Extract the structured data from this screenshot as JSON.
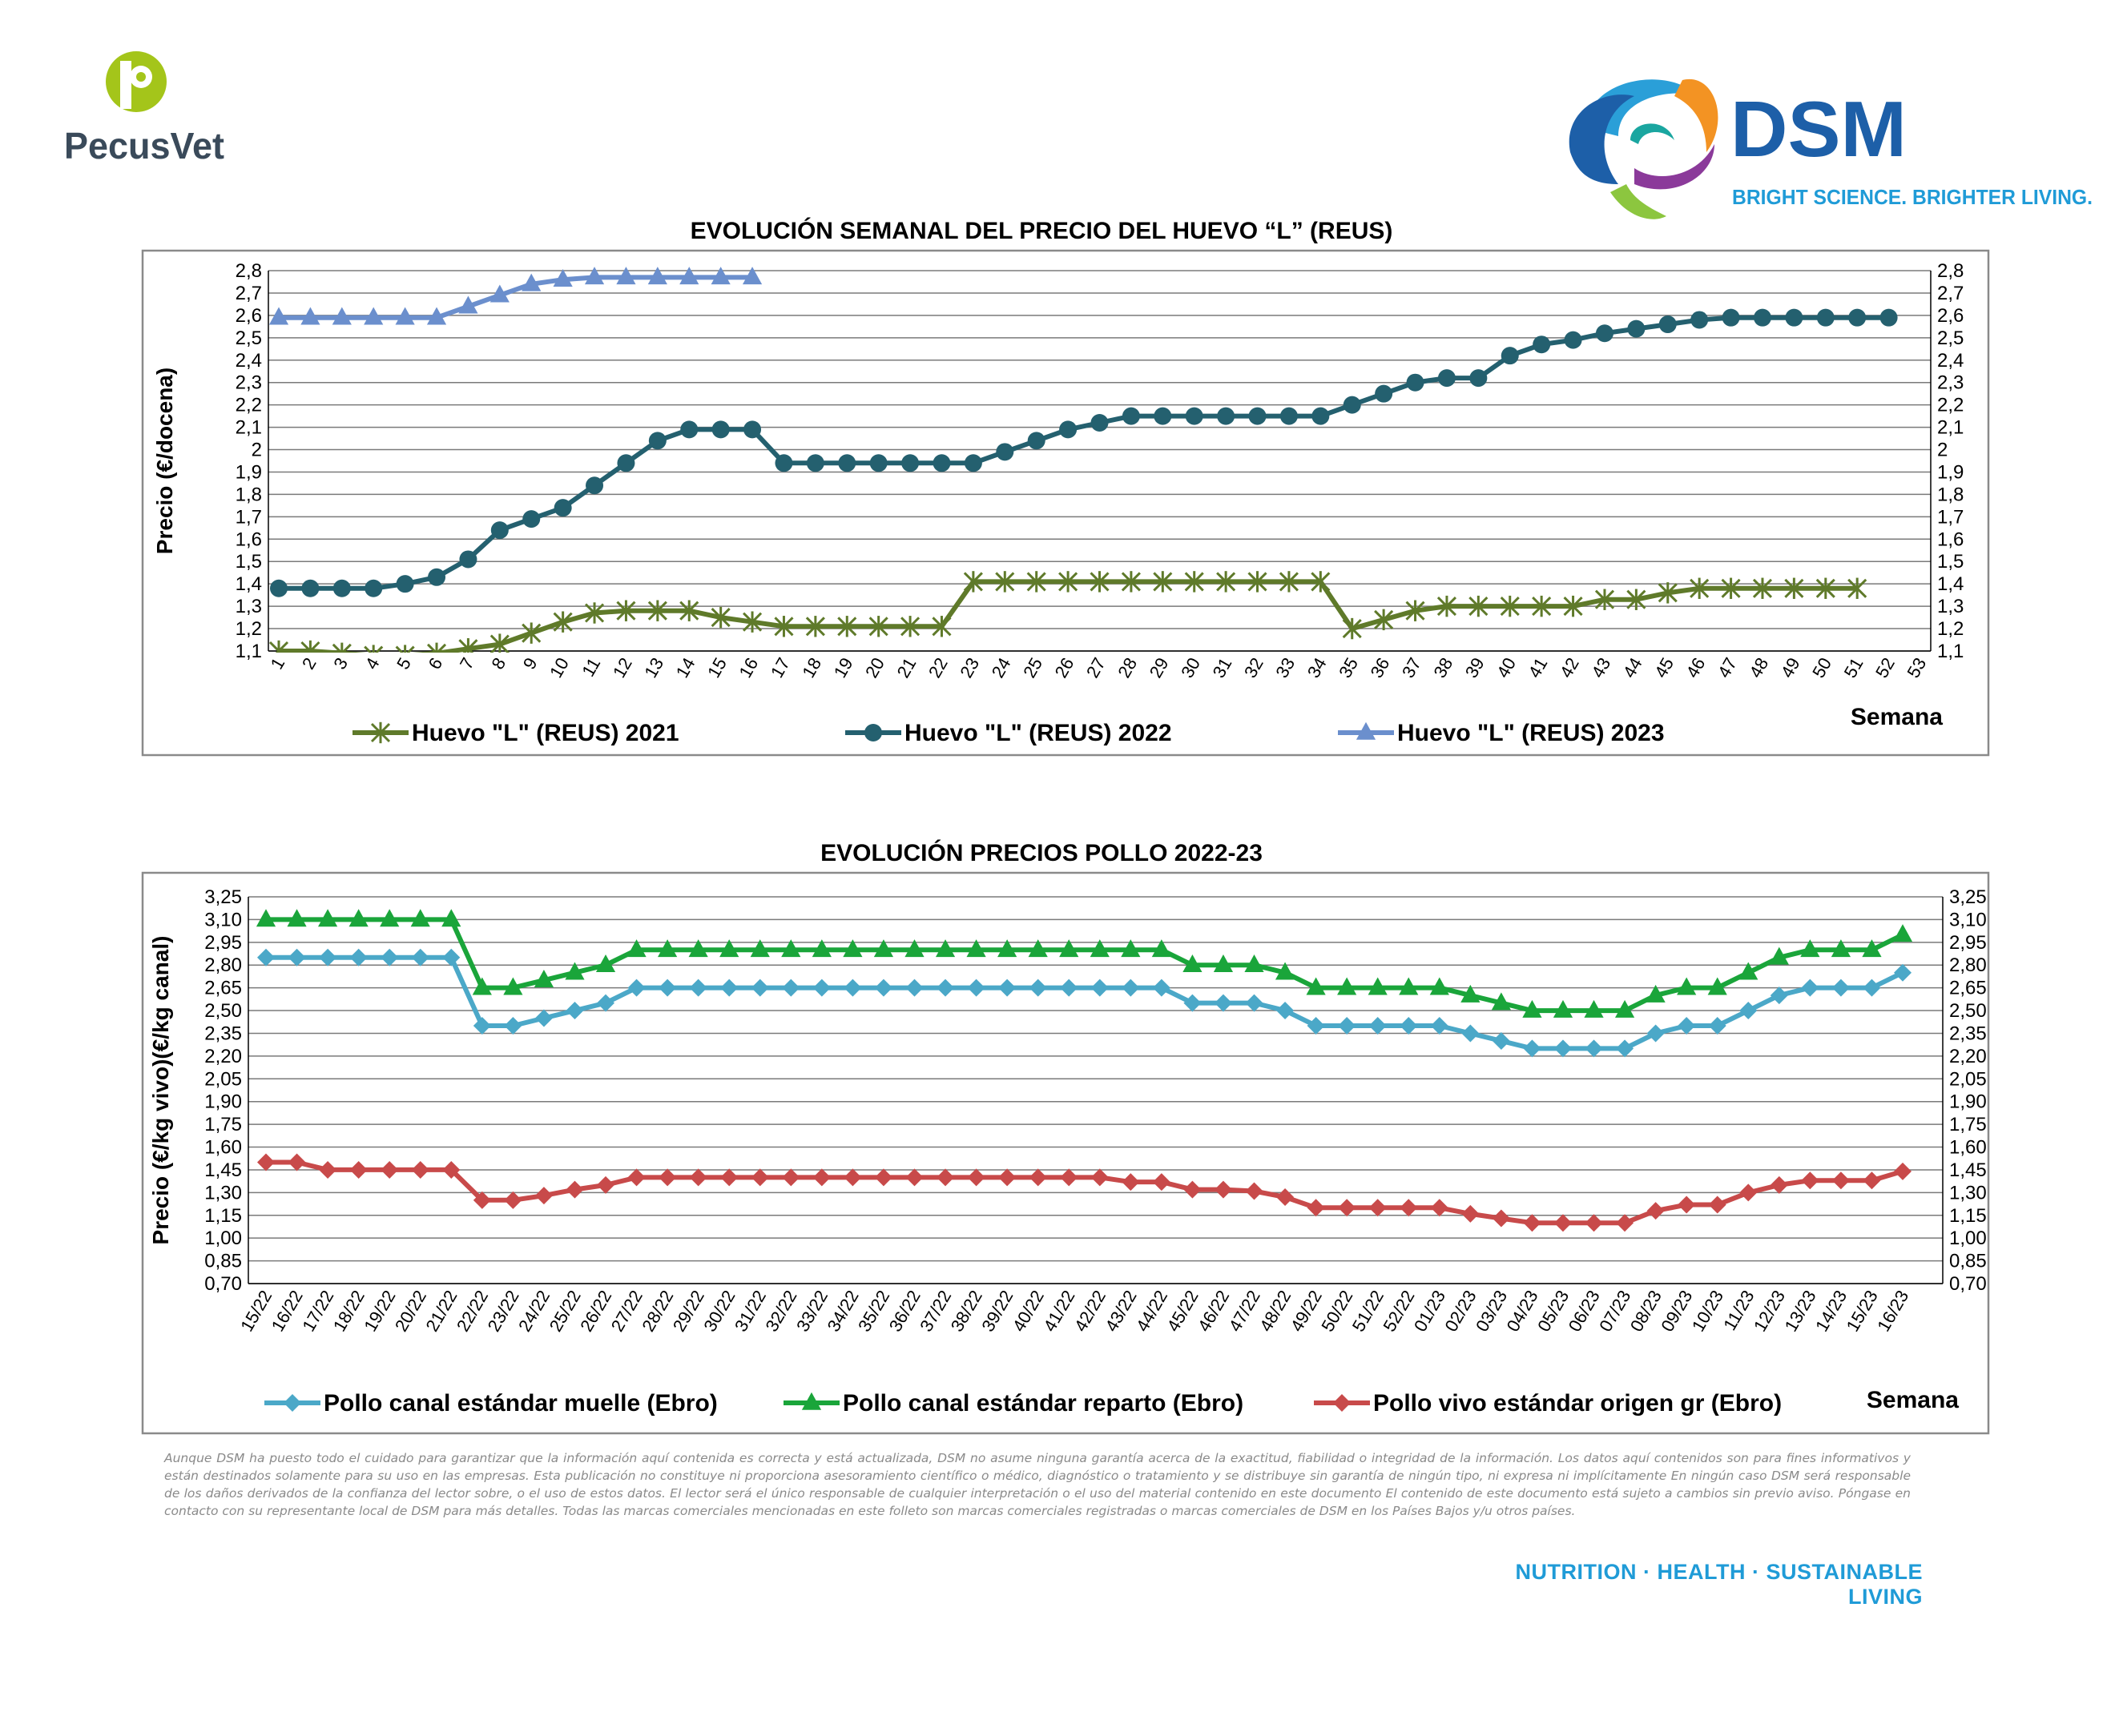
{
  "logos": {
    "pecusvet": {
      "name": "PecusVet",
      "color": "#3a4a5a",
      "accent": "#a4c51a"
    },
    "dsm": {
      "name": "DSM",
      "tagline": "BRIGHT SCIENCE. BRIGHTER LIVING.",
      "color": "#1d5fa8",
      "tagline_color": "#1f9bd7"
    }
  },
  "disclaimer": "Aunque DSM ha puesto todo el cuidado para garantizar que la información aquí contenida es correcta y está actualizada, DSM no asume ninguna garantía acerca de la exactitud, fiabilidad o integridad de la información. Los datos aquí contenidos son para fines informativos y están destinados solamente para su uso en las empresas. Esta publicación no constituye ni proporciona asesoramiento científico o médico, diagnóstico o tratamiento y se distribuye sin garantía de ningún tipo, ni expresa ni implícitamente En ningún caso DSM será responsable de los daños derivados de la confianza del lector sobre, o el uso de estos datos. El lector será el único responsable de cualquier interpretación o el uso del material contenido en este documento El contenido de este documento está sujeto a cambios sin previo aviso. Póngase en contacto con su representante local de DSM para más detalles. Todas las marcas comerciales mencionadas en este folleto son marcas comerciales registradas o marcas comerciales de DSM en los Países Bajos y/u otros países.",
  "footer_slogan": "NUTRITION · HEALTH · SUSTAINABLE LIVING",
  "chart_data": [
    {
      "type": "line",
      "title": "EVOLUCIÓN SEMANAL DEL PRECIO DEL HUEVO “L” (REUS)",
      "ylabel": "Precio (€/docena)",
      "xlabel": "Semana",
      "ylim": [
        1.1,
        2.8
      ],
      "yticks": [
        "2,8",
        "2,7",
        "2,6",
        "2,5",
        "2,4",
        "2,3",
        "2,2",
        "2,1",
        "2",
        "1,9",
        "1,8",
        "1,7",
        "1,6",
        "1,5",
        "1,4",
        "1,3",
        "1,2",
        "1,1"
      ],
      "ytick_values": [
        2.8,
        2.7,
        2.6,
        2.5,
        2.4,
        2.3,
        2.2,
        2.1,
        2.0,
        1.9,
        1.8,
        1.7,
        1.6,
        1.5,
        1.4,
        1.3,
        1.2,
        1.1
      ],
      "categories": [
        "1",
        "2",
        "3",
        "4",
        "5",
        "6",
        "7",
        "8",
        "9",
        "10",
        "11",
        "12",
        "13",
        "14",
        "15",
        "16",
        "17",
        "18",
        "19",
        "20",
        "21",
        "22",
        "23",
        "24",
        "25",
        "26",
        "27",
        "28",
        "29",
        "30",
        "31",
        "32",
        "33",
        "34",
        "35",
        "36",
        "37",
        "38",
        "39",
        "40",
        "41",
        "42",
        "43",
        "44",
        "45",
        "46",
        "47",
        "48",
        "49",
        "50",
        "51",
        "52",
        "53"
      ],
      "grid": true,
      "legend_position": "bottom",
      "series": [
        {
          "name": "Huevo \"L\" (REUS) 2021",
          "color": "#5f7a2a",
          "marker": "star",
          "values": [
            1.1,
            1.1,
            1.09,
            1.08,
            1.08,
            1.09,
            1.11,
            1.13,
            1.18,
            1.23,
            1.27,
            1.28,
            1.28,
            1.28,
            1.25,
            1.23,
            1.21,
            1.21,
            1.21,
            1.21,
            1.21,
            1.21,
            1.41,
            1.41,
            1.41,
            1.41,
            1.41,
            1.41,
            1.41,
            1.41,
            1.41,
            1.41,
            1.41,
            1.41,
            1.2,
            1.24,
            1.28,
            1.3,
            1.3,
            1.3,
            1.3,
            1.3,
            1.33,
            1.33,
            1.36,
            1.38,
            1.38,
            1.38,
            1.38,
            1.38,
            1.38,
            null,
            null
          ]
        },
        {
          "name": "Huevo \"L\" (REUS) 2022",
          "color": "#24606f",
          "marker": "circle",
          "values": [
            1.38,
            1.38,
            1.38,
            1.38,
            1.4,
            1.43,
            1.51,
            1.64,
            1.69,
            1.74,
            1.84,
            1.94,
            2.04,
            2.09,
            2.09,
            2.09,
            1.94,
            1.94,
            1.94,
            1.94,
            1.94,
            1.94,
            1.94,
            1.99,
            2.04,
            2.09,
            2.12,
            2.15,
            2.15,
            2.15,
            2.15,
            2.15,
            2.15,
            2.15,
            2.2,
            2.25,
            2.3,
            2.32,
            2.32,
            2.42,
            2.47,
            2.49,
            2.52,
            2.54,
            2.56,
            2.58,
            2.59,
            2.59,
            2.59,
            2.59,
            2.59,
            2.59,
            null
          ]
        },
        {
          "name": "Huevo \"L\" (REUS) 2023",
          "color": "#6b8fcd",
          "marker": "triangle",
          "values": [
            2.59,
            2.59,
            2.59,
            2.59,
            2.59,
            2.59,
            2.64,
            2.69,
            2.74,
            2.76,
            2.77,
            2.77,
            2.77,
            2.77,
            2.77,
            2.77,
            null,
            null,
            null,
            null,
            null,
            null,
            null,
            null,
            null,
            null,
            null,
            null,
            null,
            null,
            null,
            null,
            null,
            null,
            null,
            null,
            null,
            null,
            null,
            null,
            null,
            null,
            null,
            null,
            null,
            null,
            null,
            null,
            null,
            null,
            null,
            null,
            null
          ]
        }
      ]
    },
    {
      "type": "line",
      "title": "EVOLUCIÓN PRECIOS POLLO 2022-23",
      "ylabel": "Precio (€/kg vivo)(€/kg canal)",
      "xlabel": "Semana",
      "ylim": [
        0.7,
        3.25
      ],
      "yticks": [
        "3,25",
        "3,10",
        "2,95",
        "2,80",
        "2,65",
        "2,50",
        "2,35",
        "2,20",
        "2,05",
        "1,90",
        "1,75",
        "1,60",
        "1,45",
        "1,30",
        "1,15",
        "1,00",
        "0,85",
        "0,70"
      ],
      "ytick_values": [
        3.25,
        3.1,
        2.95,
        2.8,
        2.65,
        2.5,
        2.35,
        2.2,
        2.05,
        1.9,
        1.75,
        1.6,
        1.45,
        1.3,
        1.15,
        1.0,
        0.85,
        0.7
      ],
      "categories": [
        "15/22",
        "16/22",
        "17/22",
        "18/22",
        "19/22",
        "20/22",
        "21/22",
        "22/22",
        "23/22",
        "24/22",
        "25/22",
        "26/22",
        "27/22",
        "28/22",
        "29/22",
        "30/22",
        "31/22",
        "32/22",
        "33/22",
        "34/22",
        "35/22",
        "36/22",
        "37/22",
        "38/22",
        "39/22",
        "40/22",
        "41/22",
        "42/22",
        "43/22",
        "44/22",
        "45/22",
        "46/22",
        "47/22",
        "48/22",
        "49/22",
        "50/22",
        "51/22",
        "52/22",
        "01/23",
        "02/23",
        "03/23",
        "04/23",
        "05/23",
        "06/23",
        "07/23",
        "08/23",
        "09/23",
        "10/23",
        "11/23",
        "12/23",
        "13/23",
        "14/23",
        "15/23",
        "16/23"
      ],
      "grid": true,
      "legend_position": "bottom",
      "series": [
        {
          "name": "Pollo canal estándar muelle (Ebro)",
          "color": "#4ba8c8",
          "marker": "diamond",
          "values": [
            2.85,
            2.85,
            2.85,
            2.85,
            2.85,
            2.85,
            2.85,
            2.4,
            2.4,
            2.45,
            2.5,
            2.55,
            2.65,
            2.65,
            2.65,
            2.65,
            2.65,
            2.65,
            2.65,
            2.65,
            2.65,
            2.65,
            2.65,
            2.65,
            2.65,
            2.65,
            2.65,
            2.65,
            2.65,
            2.65,
            2.55,
            2.55,
            2.55,
            2.5,
            2.4,
            2.4,
            2.4,
            2.4,
            2.4,
            2.35,
            2.3,
            2.25,
            2.25,
            2.25,
            2.25,
            2.35,
            2.4,
            2.4,
            2.5,
            2.6,
            2.65,
            2.65,
            2.65,
            2.75
          ]
        },
        {
          "name": "Pollo canal estándar reparto (Ebro)",
          "color": "#1aa53a",
          "marker": "triangle",
          "values": [
            3.1,
            3.1,
            3.1,
            3.1,
            3.1,
            3.1,
            3.1,
            2.65,
            2.65,
            2.7,
            2.75,
            2.8,
            2.9,
            2.9,
            2.9,
            2.9,
            2.9,
            2.9,
            2.9,
            2.9,
            2.9,
            2.9,
            2.9,
            2.9,
            2.9,
            2.9,
            2.9,
            2.9,
            2.9,
            2.9,
            2.8,
            2.8,
            2.8,
            2.75,
            2.65,
            2.65,
            2.65,
            2.65,
            2.65,
            2.6,
            2.55,
            2.5,
            2.5,
            2.5,
            2.5,
            2.6,
            2.65,
            2.65,
            2.75,
            2.85,
            2.9,
            2.9,
            2.9,
            3.0
          ]
        },
        {
          "name": "Pollo vivo estándar origen gr (Ebro)",
          "color": "#c84a4a",
          "marker": "diamond",
          "values": [
            1.5,
            1.5,
            1.45,
            1.45,
            1.45,
            1.45,
            1.45,
            1.25,
            1.25,
            1.28,
            1.32,
            1.35,
            1.4,
            1.4,
            1.4,
            1.4,
            1.4,
            1.4,
            1.4,
            1.4,
            1.4,
            1.4,
            1.4,
            1.4,
            1.4,
            1.4,
            1.4,
            1.4,
            1.37,
            1.37,
            1.32,
            1.32,
            1.31,
            1.27,
            1.2,
            1.2,
            1.2,
            1.2,
            1.2,
            1.16,
            1.13,
            1.1,
            1.1,
            1.1,
            1.1,
            1.18,
            1.22,
            1.22,
            1.3,
            1.35,
            1.38,
            1.38,
            1.38,
            1.44
          ]
        }
      ]
    }
  ]
}
